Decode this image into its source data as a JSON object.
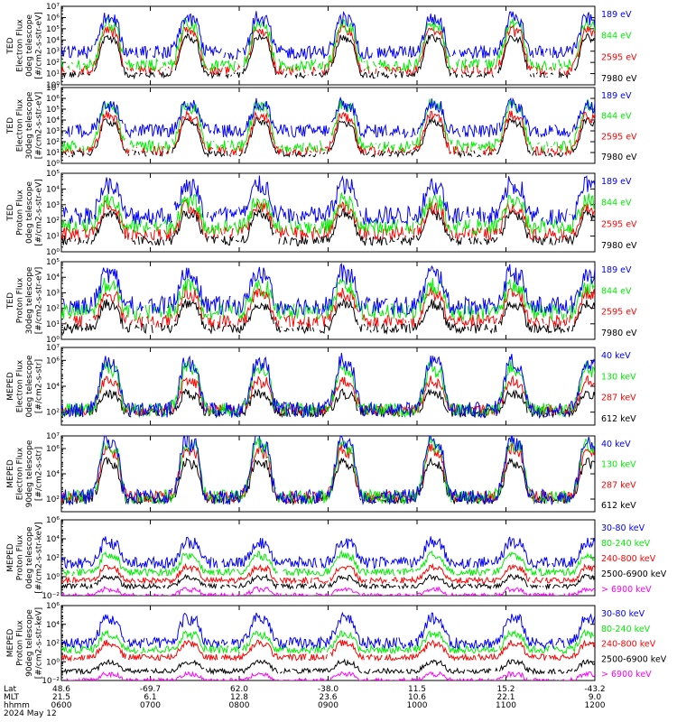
{
  "colors": {
    "blue": "#0000ff",
    "red": "#ff0000",
    "green": "#00ee00",
    "black": "#000000",
    "magenta": "#ff00ff"
  },
  "chart_data": [
    {
      "type": "line",
      "ylabel": [
        "TED",
        "Electron Flux",
        "0deg telescope",
        "[#/cm2-s-str-eV]"
      ],
      "y_scale": "log",
      "ylim": [
        1,
        10000000
      ],
      "yticks": [
        {
          "value": 1,
          "label": "10⁰"
        },
        {
          "value": 10,
          "label": "10¹"
        },
        {
          "value": 100,
          "label": "10²"
        },
        {
          "value": 1000,
          "label": "10³"
        },
        {
          "value": 10000,
          "label": "10⁴"
        },
        {
          "value": 100000,
          "label": "10⁵"
        },
        {
          "value": 1000000,
          "label": "10⁶"
        },
        {
          "value": 10000000,
          "label": "10⁷"
        }
      ],
      "series": [
        {
          "name": "7980 eV",
          "color": "black",
          "base": 8,
          "peak": 20000,
          "level": 0.15,
          "cut": 8
        },
        {
          "name": "2595 eV",
          "color": "red",
          "base": 20,
          "peak": 100000,
          "level": 0.5,
          "cut": 7
        },
        {
          "name": "844 eV",
          "color": "green",
          "base": 60,
          "peak": 300000,
          "level": 0.8,
          "cut": 5
        },
        {
          "name": "189 eV",
          "color": "blue",
          "base": 800,
          "peak": 1000000,
          "level": 1,
          "cut": 3
        }
      ]
    },
    {
      "type": "line",
      "ylabel": [
        "TED",
        "Electron Flux",
        "30deg telescope",
        "[#/cm2-s-str-eV]"
      ],
      "y_scale": "log",
      "ylim": [
        1,
        10000000
      ],
      "yticks": [
        {
          "value": 1,
          "label": "10⁰"
        },
        {
          "value": 10,
          "label": "10¹"
        },
        {
          "value": 100,
          "label": "10²"
        },
        {
          "value": 1000,
          "label": "10³"
        },
        {
          "value": 10000,
          "label": "10⁴"
        },
        {
          "value": 100000,
          "label": "10⁵"
        },
        {
          "value": 1000000,
          "label": "10⁶"
        },
        {
          "value": 10000000,
          "label": "10⁷"
        }
      ],
      "series": [
        {
          "name": "7980 eV",
          "color": "black",
          "base": 8,
          "peak": 10000,
          "level": 0.15,
          "cut": 8
        },
        {
          "name": "2595 eV",
          "color": "red",
          "base": 15,
          "peak": 30000,
          "level": 0.5,
          "cut": 7
        },
        {
          "name": "844 eV",
          "color": "green",
          "base": 40,
          "peak": 300000,
          "level": 0.8,
          "cut": 5
        },
        {
          "name": "189 eV",
          "color": "blue",
          "base": 1000,
          "peak": 300000,
          "level": 1,
          "cut": 3
        }
      ]
    },
    {
      "type": "line",
      "ylabel": [
        "TED",
        "Proton Flux",
        "0deg telescope",
        "[#/cm2-s-str-eV]"
      ],
      "y_scale": "log",
      "ylim": [
        1,
        100000
      ],
      "yticks": [
        {
          "value": 1,
          "label": "10⁰"
        },
        {
          "value": 10,
          "label": "10¹"
        },
        {
          "value": 100,
          "label": "10²"
        },
        {
          "value": 1000,
          "label": "10³"
        },
        {
          "value": 10000,
          "label": "10⁴"
        },
        {
          "value": 100000,
          "label": "10⁵"
        }
      ],
      "series": [
        {
          "name": "7980 eV",
          "color": "black",
          "base": 5,
          "peak": 300,
          "level": 0.2,
          "cut": 6
        },
        {
          "name": "2595 eV",
          "color": "red",
          "base": 15,
          "peak": 800,
          "level": 0.5,
          "cut": 5
        },
        {
          "name": "844 eV",
          "color": "green",
          "base": 40,
          "peak": 2000,
          "level": 0.7,
          "cut": 4
        },
        {
          "name": "189 eV",
          "color": "blue",
          "base": 200,
          "peak": 20000,
          "level": 1,
          "cut": 3
        }
      ]
    },
    {
      "type": "line",
      "ylabel": [
        "TED",
        "Proton Flux",
        "30deg telescope",
        "[#/cm2-s-str-eV]"
      ],
      "y_scale": "log",
      "ylim": [
        1,
        100000
      ],
      "yticks": [
        {
          "value": 1,
          "label": "10⁰"
        },
        {
          "value": 10,
          "label": "10¹"
        },
        {
          "value": 100,
          "label": "10²"
        },
        {
          "value": 1000,
          "label": "10³"
        },
        {
          "value": 10000,
          "label": "10⁴"
        },
        {
          "value": 100000,
          "label": "10⁵"
        }
      ],
      "series": [
        {
          "name": "7980 eV",
          "color": "black",
          "base": 5,
          "peak": 200,
          "level": 0.2,
          "cut": 6
        },
        {
          "name": "2595 eV",
          "color": "red",
          "base": 15,
          "peak": 1000,
          "level": 0.5,
          "cut": 5
        },
        {
          "name": "844 eV",
          "color": "green",
          "base": 60,
          "peak": 3000,
          "level": 0.8,
          "cut": 4
        },
        {
          "name": "189 eV",
          "color": "blue",
          "base": 150,
          "peak": 20000,
          "level": 1,
          "cut": 3
        }
      ]
    },
    {
      "type": "line",
      "ylabel": [
        "MEPED",
        "Electron Flux",
        "0deg telescope",
        "[#/cm2-s-str]"
      ],
      "y_scale": "log",
      "ylim": [
        10,
        10000000
      ],
      "yticks": [
        {
          "value": 100,
          "label": "10²"
        },
        {
          "value": 10000,
          "label": "10⁴"
        },
        {
          "value": 1000000,
          "label": "10⁶"
        },
        {
          "value": 10000000,
          "label": "10⁷"
        }
      ],
      "series": [
        {
          "name": "612 keV",
          "color": "black",
          "base": 90,
          "peak": 3000,
          "level": 0.3,
          "cut": 4
        },
        {
          "name": "287 keV",
          "color": "red",
          "base": 150,
          "peak": 30000,
          "level": 0.5,
          "cut": 1
        },
        {
          "name": "130 keV",
          "color": "green",
          "base": 150,
          "peak": 300000,
          "level": 0.8,
          "cut": 1
        },
        {
          "name": "40 keV",
          "color": "blue",
          "base": 150,
          "peak": 1000000,
          "level": 1,
          "cut": 1
        }
      ]
    },
    {
      "type": "line",
      "ylabel": [
        "MEPED",
        "Electron Flux",
        "90deg telescope",
        "[#/cm2-s-str]"
      ],
      "y_scale": "log",
      "ylim": [
        10,
        10000000
      ],
      "yticks": [
        {
          "value": 100,
          "label": "10²"
        },
        {
          "value": 10000,
          "label": "10⁴"
        },
        {
          "value": 1000000,
          "label": "10⁶"
        },
        {
          "value": 10000000,
          "label": "10⁷"
        }
      ],
      "series": [
        {
          "name": "612 keV",
          "color": "black",
          "base": 90,
          "peak": 100000,
          "level": 0.3,
          "cut": 4
        },
        {
          "name": "287 keV",
          "color": "red",
          "base": 150,
          "peak": 1000000,
          "level": 0.6,
          "cut": 1
        },
        {
          "name": "130 keV",
          "color": "green",
          "base": 150,
          "peak": 3000000,
          "level": 0.85,
          "cut": 1
        },
        {
          "name": "40 keV",
          "color": "blue",
          "base": 150,
          "peak": 5000000,
          "level": 1,
          "cut": 1
        }
      ]
    },
    {
      "type": "line",
      "ylabel": [
        "MEPED",
        "Proton Flux",
        "0deg telescope",
        "[#/cm2-s-str-keV]"
      ],
      "y_scale": "log",
      "ylim": [
        0.01,
        1000000
      ],
      "yticks": [
        {
          "value": 0.01,
          "label": "10⁻²"
        },
        {
          "value": 1,
          "label": "10⁰"
        },
        {
          "value": 100,
          "label": "10²"
        },
        {
          "value": 10000,
          "label": "10⁴"
        },
        {
          "value": 1000000,
          "label": "10⁶"
        }
      ],
      "series": [
        {
          "name": "> 6900 keV",
          "color": "magenta",
          "base": 0.01,
          "peak": 0.05,
          "level": 0.05,
          "cut": 3
        },
        {
          "name": "2500-6900 keV",
          "color": "black",
          "base": 0.1,
          "peak": 1,
          "level": 0.1,
          "cut": 2
        },
        {
          "name": "240-800 keV",
          "color": "red",
          "base": 0.4,
          "peak": 10,
          "level": 0.2,
          "cut": 1
        },
        {
          "name": "80-240 keV",
          "color": "green",
          "base": 3,
          "peak": 200,
          "level": 0.4,
          "cut": 1
        },
        {
          "name": "30-80 keV",
          "color": "blue",
          "base": 30,
          "peak": 5000,
          "level": 1,
          "cut": 1
        }
      ]
    },
    {
      "type": "line",
      "ylabel": [
        "MEPED",
        "Proton Flux",
        "90deg telescope",
        "[#/cm2-s-str-keV]"
      ],
      "y_scale": "log",
      "ylim": [
        0.01,
        1000000
      ],
      "yticks": [
        {
          "value": 0.01,
          "label": "10⁻²"
        },
        {
          "value": 1,
          "label": "10⁰"
        },
        {
          "value": 100,
          "label": "10²"
        },
        {
          "value": 10000,
          "label": "10⁴"
        },
        {
          "value": 1000000,
          "label": "10⁶"
        }
      ],
      "series": [
        {
          "name": "> 6900 keV",
          "color": "magenta",
          "base": 0.01,
          "peak": 0.05,
          "level": 0.05,
          "cut": 3
        },
        {
          "name": "2500-6900 keV",
          "color": "black",
          "base": 0.1,
          "peak": 1,
          "level": 0.1,
          "cut": 2
        },
        {
          "name": "240-800 keV",
          "color": "red",
          "base": 3,
          "peak": 100,
          "level": 0.3,
          "cut": 1
        },
        {
          "name": "80-240 keV",
          "color": "green",
          "base": 20,
          "peak": 1000,
          "level": 0.5,
          "cut": 1
        },
        {
          "name": "30-80 keV",
          "color": "blue",
          "base": 100,
          "peak": 50000,
          "level": 1,
          "cut": 1
        }
      ]
    }
  ],
  "x_axis": {
    "time_range": [
      "0600",
      "1200"
    ],
    "row_labels": [
      "Lat",
      "MLT",
      "hhmm",
      "2024 May 12"
    ],
    "ticks": [
      {
        "lat": "48.6",
        "mlt": "21.5",
        "hhmm": "0600"
      },
      {
        "lat": "-69.7",
        "mlt": "6.1",
        "hhmm": "0700"
      },
      {
        "lat": "62.0",
        "mlt": "12.8",
        "hhmm": "0800"
      },
      {
        "lat": "-38.0",
        "mlt": "23.6",
        "hhmm": "0900"
      },
      {
        "lat": "11.5",
        "mlt": "10.6",
        "hhmm": "1000"
      },
      {
        "lat": "15.2",
        "mlt": "22.1",
        "hhmm": "1100"
      },
      {
        "lat": "-43.2",
        "mlt": "9.0",
        "hhmm": "1200"
      }
    ]
  },
  "passes": [
    0.5,
    1.4,
    2.2,
    3.15,
    4.15,
    5.05,
    5.9
  ]
}
